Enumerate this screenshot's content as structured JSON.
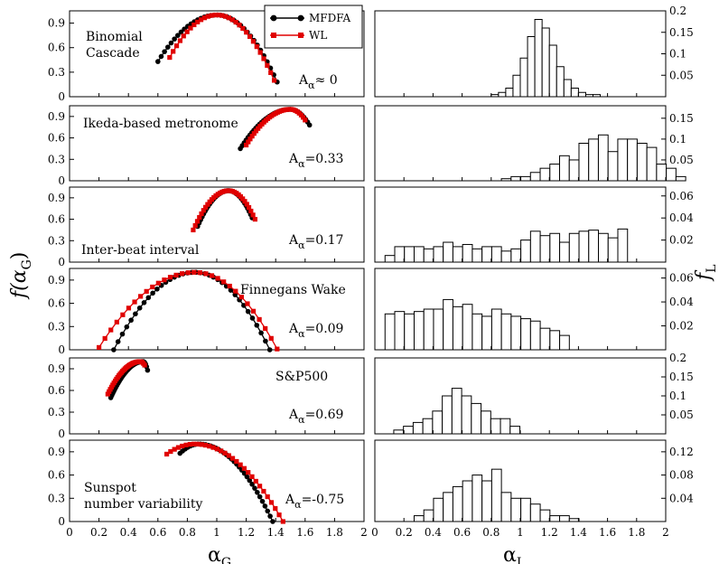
{
  "figure": {
    "left_xlabel": "α",
    "left_xlabel_sub": "G",
    "left_ylabel": "f(α",
    "left_ylabel_sub": "G",
    "right_xlabel": "α",
    "right_xlabel_sub": "L",
    "right_ylabel": "f",
    "right_ylabel_sub": "L",
    "legend": [
      {
        "label": "MFDFA",
        "color": "#000000",
        "marker": "circle"
      },
      {
        "label": "WL",
        "color": "#e00000",
        "marker": "square"
      }
    ]
  },
  "chart_data": [
    {
      "type": "line",
      "panel": "Binomial Cascade",
      "title_lines": [
        "Binomial",
        "Cascade"
      ],
      "asym_label": "A",
      "asym_sub": "α",
      "asym_text": "≈ 0",
      "xlim": [
        0,
        2
      ],
      "ylim": [
        0,
        1.05
      ],
      "yticks": [
        0,
        0.3,
        0.6,
        0.9
      ],
      "series": [
        {
          "name": "MFDFA",
          "color": "#000000",
          "x_start": 0.6,
          "x_end": 1.41,
          "x_peak": 1.0,
          "y_start": 0.43,
          "y_end": 0.18,
          "y_peak": 1.0
        },
        {
          "name": "WL",
          "color": "#e00000",
          "x_start": 0.68,
          "x_end": 1.39,
          "x_peak": 1.0,
          "y_start": 0.48,
          "y_end": 0.2,
          "y_peak": 1.0
        }
      ]
    },
    {
      "type": "line",
      "panel": "Ikeda-based metronome",
      "title_lines": [
        "Ikeda-based metronome"
      ],
      "asym_label": "A",
      "asym_sub": "α",
      "asym_text": "=0.33",
      "xlim": [
        0,
        2
      ],
      "ylim": [
        0,
        1.05
      ],
      "yticks": [
        0,
        0.3,
        0.6,
        0.9
      ],
      "series": [
        {
          "name": "MFDFA",
          "color": "#000000",
          "x_start": 1.16,
          "x_end": 1.63,
          "x_peak": 1.5,
          "y_start": 0.45,
          "y_end": 0.78,
          "y_peak": 1.0
        },
        {
          "name": "WL",
          "color": "#e00000",
          "x_start": 1.2,
          "x_end": 1.6,
          "x_peak": 1.5,
          "y_start": 0.5,
          "y_end": 0.85,
          "y_peak": 1.0
        }
      ]
    },
    {
      "type": "line",
      "panel": "Inter-beat interval",
      "title_lines": [
        "Inter-beat interval"
      ],
      "asym_label": "A",
      "asym_sub": "α",
      "asym_text": "=0.17",
      "xlim": [
        0,
        2
      ],
      "ylim": [
        0,
        1.05
      ],
      "yticks": [
        0,
        0.3,
        0.6,
        0.9
      ],
      "series": [
        {
          "name": "MFDFA",
          "color": "#000000",
          "x_start": 0.87,
          "x_end": 1.24,
          "x_peak": 1.08,
          "y_start": 0.5,
          "y_end": 0.62,
          "y_peak": 1.0
        },
        {
          "name": "WL",
          "color": "#e00000",
          "x_start": 0.84,
          "x_end": 1.26,
          "x_peak": 1.08,
          "y_start": 0.45,
          "y_end": 0.6,
          "y_peak": 1.0
        }
      ]
    },
    {
      "type": "line",
      "panel": "Finnegans Wake",
      "title_lines": [
        "Finnegans Wake"
      ],
      "asym_label": "A",
      "asym_sub": "α",
      "asym_text": "=0.09",
      "xlim": [
        0,
        2
      ],
      "ylim": [
        0,
        1.05
      ],
      "yticks": [
        0,
        0.3,
        0.6,
        0.9
      ],
      "series": [
        {
          "name": "MFDFA",
          "color": "#000000",
          "x_start": 0.3,
          "x_end": 1.36,
          "x_peak": 0.85,
          "y_start": 0.0,
          "y_end": 0.0,
          "y_peak": 1.0
        },
        {
          "name": "WL",
          "color": "#e00000",
          "x_start": 0.2,
          "x_end": 1.41,
          "x_peak": 0.85,
          "y_start": 0.03,
          "y_end": 0.01,
          "y_peak": 1.0
        }
      ]
    },
    {
      "type": "line",
      "panel": "S&P500",
      "title_lines": [
        "S&P500"
      ],
      "asym_label": "A",
      "asym_sub": "α",
      "asym_text": "=0.69",
      "xlim": [
        0,
        2
      ],
      "ylim": [
        0,
        1.05
      ],
      "yticks": [
        0,
        0.3,
        0.6,
        0.9
      ],
      "series": [
        {
          "name": "MFDFA",
          "color": "#000000",
          "x_start": 0.28,
          "x_end": 0.53,
          "x_peak": 0.5,
          "y_start": 0.5,
          "y_end": 0.88,
          "y_peak": 1.0
        },
        {
          "name": "WL",
          "color": "#e00000",
          "x_start": 0.26,
          "x_end": 0.51,
          "x_peak": 0.48,
          "y_start": 0.55,
          "y_end": 0.95,
          "y_peak": 1.0
        }
      ]
    },
    {
      "type": "line",
      "panel": "Sunspot number variability",
      "title_lines": [
        "Sunspot",
        "number variability"
      ],
      "asym_label": "A",
      "asym_sub": "α",
      "asym_text": "=-0.75",
      "xlim": [
        0,
        2
      ],
      "ylim": [
        0,
        1.05
      ],
      "yticks": [
        0,
        0.3,
        0.6,
        0.9
      ],
      "xticks": [
        0,
        0.2,
        0.4,
        0.6,
        0.8,
        1,
        1.2,
        1.4,
        1.6,
        1.8,
        2
      ],
      "series": [
        {
          "name": "MFDFA",
          "color": "#000000",
          "x_start": 0.75,
          "x_end": 1.38,
          "x_peak": 0.88,
          "y_start": 0.88,
          "y_end": 0.0,
          "y_peak": 1.0
        },
        {
          "name": "WL",
          "color": "#e00000",
          "x_start": 0.66,
          "x_end": 1.45,
          "x_peak": 0.85,
          "y_start": 0.87,
          "y_end": 0.0,
          "y_peak": 1.0
        }
      ]
    },
    {
      "type": "bar",
      "panel": "Binomial Cascade histogram",
      "xlim": [
        0,
        2
      ],
      "ylim": [
        0,
        0.2
      ],
      "yticks": [
        0.05,
        0.1,
        0.15,
        0.2
      ],
      "ytick_labels": [
        "0.05",
        "0.1",
        "0.15",
        "0.2"
      ],
      "bin_width": 0.05,
      "bin_start": 0.8,
      "values": [
        0.005,
        0.01,
        0.02,
        0.05,
        0.09,
        0.14,
        0.18,
        0.16,
        0.12,
        0.07,
        0.04,
        0.02,
        0.01,
        0.005,
        0.005
      ]
    },
    {
      "type": "bar",
      "panel": "Ikeda-based metronome histogram",
      "xlim": [
        0,
        2
      ],
      "ylim": [
        0,
        0.18
      ],
      "yticks": [
        0.05,
        0.1,
        0.15
      ],
      "ytick_labels": [
        "0.05",
        "0.1",
        "0.15"
      ],
      "bin_width": 0.0667,
      "bin_start": 0.87,
      "values": [
        0.005,
        0.01,
        0.01,
        0.02,
        0.03,
        0.04,
        0.06,
        0.05,
        0.09,
        0.1,
        0.11,
        0.07,
        0.1,
        0.1,
        0.09,
        0.08,
        0.04,
        0.03,
        0.01
      ]
    },
    {
      "type": "bar",
      "panel": "Inter-beat interval histogram",
      "xlim": [
        0,
        2
      ],
      "ylim": [
        0,
        0.068
      ],
      "yticks": [
        0.02,
        0.04,
        0.06
      ],
      "ytick_labels": [
        "0.02",
        "0.04",
        "0.06"
      ],
      "bin_width": 0.0667,
      "bin_start": 0.07,
      "values": [
        0.006,
        0.014,
        0.014,
        0.014,
        0.012,
        0.014,
        0.018,
        0.014,
        0.016,
        0.012,
        0.014,
        0.014,
        0.01,
        0.012,
        0.02,
        0.028,
        0.024,
        0.026,
        0.018,
        0.026,
        0.028,
        0.029,
        0.026,
        0.022,
        0.03
      ]
    },
    {
      "type": "bar",
      "panel": "Finnegans Wake histogram",
      "xlim": [
        0,
        2
      ],
      "ylim": [
        0,
        0.068
      ],
      "yticks": [
        0.02,
        0.04,
        0.06
      ],
      "ytick_labels": [
        "0.02",
        "0.04",
        "0.06"
      ],
      "bin_width": 0.0667,
      "bin_start": 0.07,
      "values": [
        0.03,
        0.032,
        0.03,
        0.032,
        0.034,
        0.034,
        0.042,
        0.036,
        0.038,
        0.03,
        0.028,
        0.034,
        0.03,
        0.028,
        0.026,
        0.024,
        0.018,
        0.016,
        0.012
      ]
    },
    {
      "type": "bar",
      "panel": "S&P500 histogram",
      "xlim": [
        0,
        2
      ],
      "ylim": [
        0,
        0.2
      ],
      "yticks": [
        0.05,
        0.1,
        0.15,
        0.2
      ],
      "ytick_labels": [
        "0.05",
        "0.1",
        "0.15",
        "0.2"
      ],
      "bin_width": 0.0667,
      "bin_start": 0.13,
      "values": [
        0.01,
        0.02,
        0.03,
        0.04,
        0.06,
        0.1,
        0.12,
        0.1,
        0.08,
        0.06,
        0.04,
        0.04,
        0.02
      ]
    },
    {
      "type": "bar",
      "panel": "Sunspot number variability histogram",
      "xlim": [
        0,
        2
      ],
      "ylim": [
        0,
        0.14
      ],
      "yticks": [
        0.04,
        0.08,
        0.12
      ],
      "ytick_labels": [
        "0.04",
        "0.08",
        "0.12"
      ],
      "bin_width": 0.0667,
      "bin_start": 0.27,
      "values": [
        0.01,
        0.02,
        0.04,
        0.05,
        0.06,
        0.07,
        0.08,
        0.07,
        0.09,
        0.05,
        0.04,
        0.04,
        0.03,
        0.02,
        0.01,
        0.01,
        0.005
      ]
    }
  ]
}
